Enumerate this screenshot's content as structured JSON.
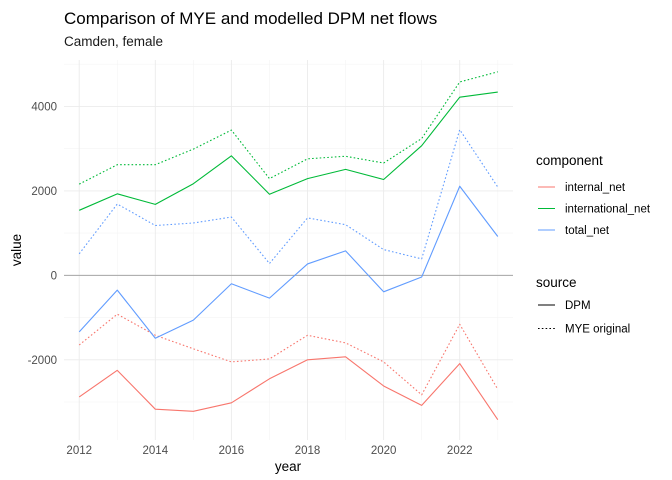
{
  "chart_data": {
    "type": "line",
    "title": "Comparison of MYE and modelled DPM net flows",
    "subtitle": "Camden, female",
    "xlabel": "year",
    "ylabel": "value",
    "x": [
      2012,
      2013,
      2014,
      2015,
      2016,
      2017,
      2018,
      2019,
      2020,
      2021,
      2022,
      2023
    ],
    "xlim": [
      2011.6,
      2023.4
    ],
    "ylim": [
      -3900,
      5100
    ],
    "x_ticks": [
      2012,
      2014,
      2016,
      2018,
      2020,
      2022
    ],
    "y_ticks": [
      -2000,
      0,
      2000,
      4000
    ],
    "y_tick_labels": [
      "-2000",
      "0",
      "2000",
      "4000"
    ],
    "grid": true,
    "reference_line": 0,
    "legend_position": "right",
    "legend": {
      "color_title": "component",
      "linetype_title": "source",
      "components": [
        {
          "name": "internal_net",
          "color": "#F8766D"
        },
        {
          "name": "international_net",
          "color": "#00BA38"
        },
        {
          "name": "total_net",
          "color": "#619CFF"
        }
      ],
      "sources": [
        {
          "name": "DPM",
          "dash": "solid"
        },
        {
          "name": "MYE original",
          "dash": "dotted"
        }
      ]
    },
    "series": [
      {
        "component": "internal_net",
        "source": "DPM",
        "color": "#F8766D",
        "dash": "solid",
        "values": [
          -2880,
          -2250,
          -3170,
          -3220,
          -3020,
          -2450,
          -2000,
          -1930,
          -2620,
          -3080,
          -2090,
          -3420
        ]
      },
      {
        "component": "internal_net",
        "source": "MYE original",
        "color": "#F8766D",
        "dash": "dotted",
        "values": [
          -1650,
          -920,
          -1420,
          -1740,
          -2050,
          -1980,
          -1420,
          -1600,
          -2050,
          -2830,
          -1160,
          -2700
        ]
      },
      {
        "component": "international_net",
        "source": "DPM",
        "color": "#00BA38",
        "dash": "solid",
        "values": [
          1540,
          1930,
          1680,
          2170,
          2830,
          1920,
          2290,
          2510,
          2270,
          3070,
          4220,
          4340
        ]
      },
      {
        "component": "international_net",
        "source": "MYE original",
        "color": "#00BA38",
        "dash": "dotted",
        "values": [
          2160,
          2620,
          2620,
          2990,
          3440,
          2290,
          2760,
          2820,
          2660,
          3240,
          4580,
          4820
        ]
      },
      {
        "component": "total_net",
        "source": "DPM",
        "color": "#619CFF",
        "dash": "solid",
        "values": [
          -1340,
          -350,
          -1490,
          -1060,
          -200,
          -540,
          270,
          580,
          -390,
          -40,
          2110,
          920
        ]
      },
      {
        "component": "total_net",
        "source": "MYE original",
        "color": "#619CFF",
        "dash": "dotted",
        "values": [
          510,
          1690,
          1180,
          1240,
          1380,
          280,
          1360,
          1200,
          610,
          390,
          3450,
          2090
        ]
      }
    ]
  }
}
